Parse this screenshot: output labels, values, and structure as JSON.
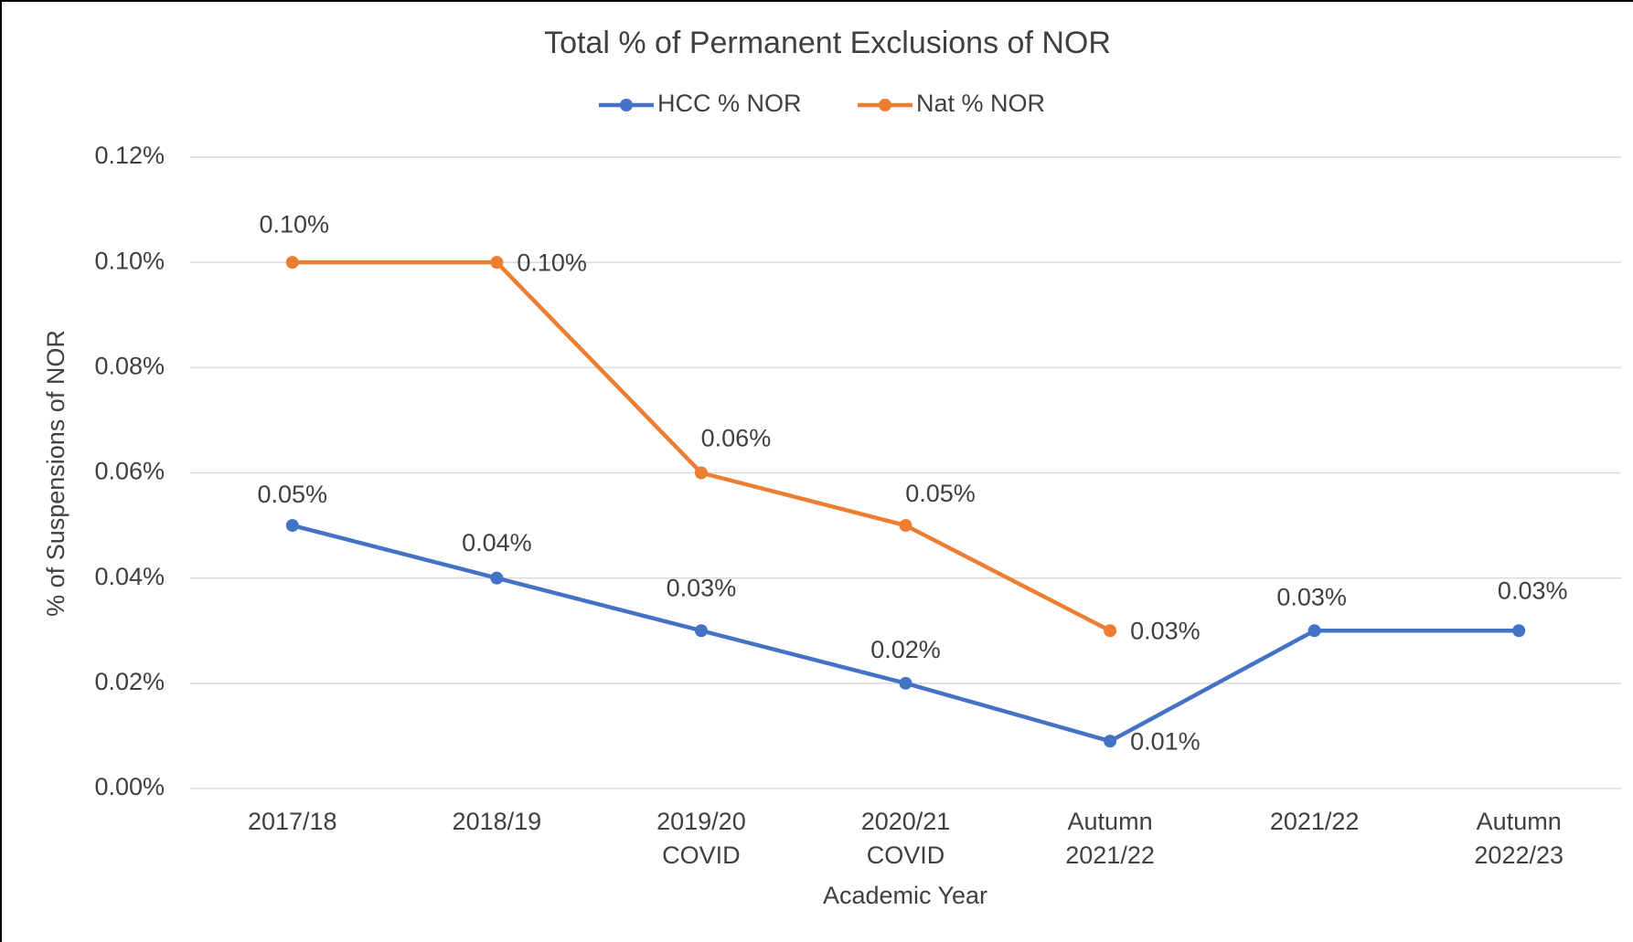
{
  "chart_data": {
    "type": "line",
    "title": "Total % of Permanent Exclusions of NOR",
    "x_label": "Academic Year",
    "y_label": "% of Suspensions of NOR",
    "categories": [
      "2017/18",
      "2018/19",
      "2019/20 COVID",
      "2020/21 COVID",
      "Autumn 2021/22",
      "2021/22",
      "Autumn 2022/23"
    ],
    "series": [
      {
        "name": "HCC % NOR",
        "color": "#4472c4",
        "values": [
          0.05,
          0.04,
          0.03,
          0.02,
          0.009,
          0.03,
          0.03
        ],
        "value_labels": [
          "0.05%",
          "0.04%",
          "0.03%",
          "0.02%",
          "0.01%",
          "0.03%",
          "0.03%"
        ]
      },
      {
        "name": "Nat % NOR",
        "color": "#ed7d31",
        "values": [
          0.1,
          0.1,
          0.06,
          0.05,
          0.03,
          null,
          null
        ],
        "value_labels": [
          "0.10%",
          "0.10%",
          "0.06%",
          "0.05%",
          "0.03%",
          null,
          null
        ]
      }
    ],
    "ylim": [
      0,
      0.12
    ],
    "yticks": [
      {
        "value": 0,
        "label": "0.00%"
      },
      {
        "value": 0.02,
        "label": "0.02%"
      },
      {
        "value": 0.04,
        "label": "0.04%"
      },
      {
        "value": 0.06,
        "label": "0.06%"
      },
      {
        "value": 0.08,
        "label": "0.08%"
      },
      {
        "value": 0.1,
        "label": "0.10%"
      },
      {
        "value": 0.12,
        "label": "0.12%"
      }
    ],
    "grid": true,
    "legend": "top"
  }
}
